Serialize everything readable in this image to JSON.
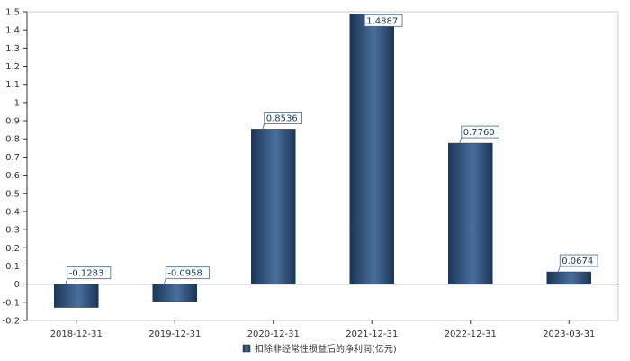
{
  "chart_data": {
    "type": "bar",
    "categories": [
      "2018-12-31",
      "2019-12-31",
      "2020-12-31",
      "2021-12-31",
      "2022-12-31",
      "2023-03-31"
    ],
    "series": [
      {
        "name": "扣除非经常性损益后的净利润(亿元)",
        "values": [
          -0.1283,
          -0.0958,
          0.8536,
          1.4887,
          0.776,
          0.0674
        ],
        "data_labels": [
          "-0.1283",
          "-0.0958",
          "0.8536",
          "1.4887",
          "0.7760",
          "0.0674"
        ]
      }
    ],
    "ylim": [
      -0.2,
      1.5
    ],
    "yticks": [
      "-0.2",
      "-0.1",
      "0",
      "0.1",
      "0.2",
      "0.3",
      "0.4",
      "0.5",
      "0.6",
      "0.7",
      "0.8",
      "0.9",
      "1",
      "1.1",
      "1.2",
      "1.3",
      "1.4",
      "1.5"
    ],
    "grid": false,
    "legend": "bottom-center",
    "colors": {
      "bar_dark": "#1b3557",
      "bar_light": "#4a6f9c",
      "label_border": "#3f6a9a"
    }
  }
}
